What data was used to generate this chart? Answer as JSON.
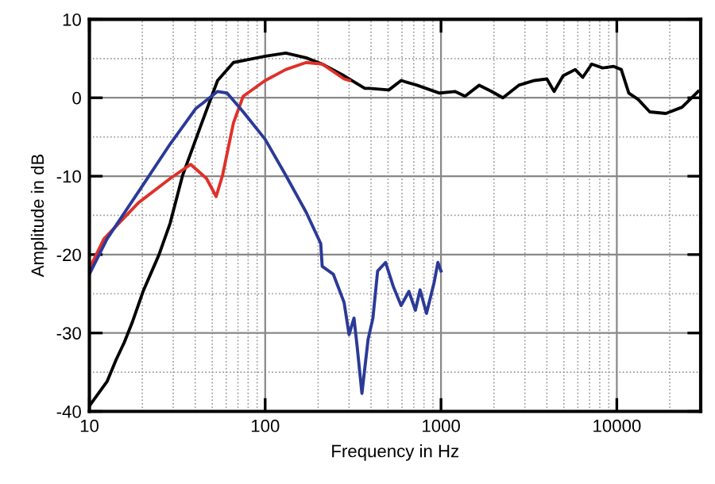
{
  "chart_data": {
    "type": "line",
    "xlabel": "Frequency in Hz",
    "ylabel": "Amplitude in dB",
    "log": "x",
    "grid": true,
    "legend": false,
    "line_style": "solid",
    "marker": "none",
    "xlim": [
      10,
      30000
    ],
    "xticks": [
      10,
      100,
      1000,
      10000
    ],
    "ylim": [
      -40,
      10
    ],
    "yticks": [
      -40,
      -30,
      -20,
      -10,
      0,
      10
    ],
    "series": [
      {
        "color": "#000000",
        "x": [
          10,
          12.6,
          14.2,
          15.8,
          17.5,
          20.2,
          24.9,
          28.8,
          33.9,
          43.6,
          53.6,
          66,
          81,
          100,
          131,
          171,
          211,
          281,
          369,
          392,
          505,
          593,
          730,
          980,
          1200,
          1370,
          1650,
          1940,
          2250,
          2770,
          3400,
          4000,
          4400,
          4950,
          5800,
          6400,
          7200,
          8300,
          9600,
          10600,
          11700,
          13200,
          15400,
          19000,
          23500,
          29000
        ],
        "values": [
          -39.3,
          -36.2,
          -33.4,
          -31.2,
          -28.7,
          -24.7,
          -20,
          -16,
          -9.9,
          -3.2,
          2.2,
          4.5,
          4.9,
          5.3,
          5.7,
          5.1,
          4.3,
          2.8,
          1.2,
          1.2,
          1.0,
          2.2,
          1.6,
          0.6,
          0.8,
          0.2,
          1.6,
          0.8,
          0,
          1.6,
          2.2,
          2.4,
          0.8,
          2.8,
          3.6,
          2.6,
          4.3,
          3.8,
          4.0,
          3.6,
          0.6,
          -0.2,
          -1.8,
          -2.0,
          -1.2,
          0.8
        ]
      },
      {
        "color": "#e0302a",
        "x": [
          10,
          12.1,
          19,
          28.8,
          37.7,
          46.4,
          52.6,
          57.2,
          66,
          75,
          100,
          131,
          171,
          211,
          281,
          302
        ],
        "values": [
          -21.8,
          -18,
          -13.4,
          -10.3,
          -8.5,
          -10.3,
          -12.6,
          -9.9,
          -3.2,
          0.2,
          2.2,
          3.6,
          4.5,
          4.3,
          2.4,
          2.2
        ]
      },
      {
        "color": "#2b3a98",
        "x": [
          10,
          12.6,
          19,
          28.8,
          40.2,
          53.6,
          60.7,
          75,
          100,
          131,
          171,
          207,
          211,
          244,
          281,
          300,
          320,
          333,
          355,
          385,
          410,
          436,
          484,
          536,
          593,
          657,
          715,
          760,
          827,
          915,
          960,
          1000
        ],
        "values": [
          -22.5,
          -18,
          -12,
          -5.9,
          -1.4,
          0.8,
          0.6,
          -1.8,
          -5.3,
          -9.9,
          -14.6,
          -18.6,
          -21.5,
          -22.5,
          -26.1,
          -30.2,
          -28.1,
          -31.6,
          -37.7,
          -30.8,
          -28.1,
          -22.1,
          -21,
          -24.1,
          -26.5,
          -24.7,
          -27.1,
          -24.5,
          -27.5,
          -23.5,
          -21,
          -22.1
        ]
      }
    ]
  }
}
